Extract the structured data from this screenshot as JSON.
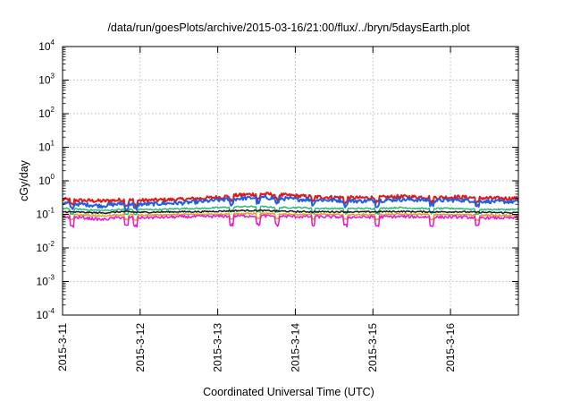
{
  "chart_data": {
    "type": "line",
    "title": "/data/run/goesPlots/archive/2015-03-16/21:00/flux/../bryn/5daysEarth.plot",
    "xlabel": "Coordinated Universal Time (UTC)",
    "ylabel": "cGy/day",
    "y_scale": "log",
    "ylim": [
      0.0001,
      10000
    ],
    "y_ticks": [
      {
        "base": "10",
        "exp": "4"
      },
      {
        "base": "10",
        "exp": "3"
      },
      {
        "base": "10",
        "exp": "2"
      },
      {
        "base": "10",
        "exp": "1"
      },
      {
        "base": "10",
        "exp": "0"
      },
      {
        "base": "10",
        "exp": "-1"
      },
      {
        "base": "10",
        "exp": "-2"
      },
      {
        "base": "10",
        "exp": "-3"
      },
      {
        "base": "10",
        "exp": "-4"
      }
    ],
    "xlim": [
      "2015-03-11",
      "2015-03-16T21:00"
    ],
    "x_ticks": [
      "2015-3-11",
      "2015-3-12",
      "2015-3-13",
      "2015-3-14",
      "2015-3-15",
      "2015-3-16"
    ],
    "grid": true,
    "series": [
      {
        "color": "#e01a1a",
        "values": [
          0.28,
          0.26,
          0.25,
          0.27,
          0.26,
          0.27,
          0.28,
          0.3,
          0.33,
          0.38,
          0.41,
          0.38,
          0.35,
          0.33,
          0.32,
          0.31,
          0.32,
          0.34,
          0.33,
          0.32,
          0.33,
          0.31,
          0.3,
          0.3
        ]
      },
      {
        "color": "#1f5fe0",
        "values": [
          0.22,
          0.2,
          0.18,
          0.21,
          0.2,
          0.21,
          0.22,
          0.24,
          0.27,
          0.3,
          0.32,
          0.3,
          0.28,
          0.27,
          0.26,
          0.25,
          0.26,
          0.28,
          0.27,
          0.26,
          0.27,
          0.25,
          0.24,
          0.24
        ]
      },
      {
        "color": "#2db87a",
        "values": [
          0.15,
          0.14,
          0.13,
          0.14,
          0.14,
          0.14,
          0.15,
          0.15,
          0.16,
          0.17,
          0.17,
          0.16,
          0.16,
          0.15,
          0.15,
          0.15,
          0.15,
          0.16,
          0.15,
          0.15,
          0.15,
          0.14,
          0.14,
          0.14
        ]
      },
      {
        "color": "#1a1a1a",
        "values": [
          0.12,
          0.115,
          0.11,
          0.12,
          0.115,
          0.118,
          0.12,
          0.12,
          0.125,
          0.13,
          0.13,
          0.125,
          0.12,
          0.12,
          0.12,
          0.118,
          0.12,
          0.122,
          0.12,
          0.118,
          0.12,
          0.115,
          0.113,
          0.112
        ]
      },
      {
        "color": "#e6a21a",
        "values": [
          0.1,
          0.095,
          0.09,
          0.098,
          0.095,
          0.097,
          0.1,
          0.1,
          0.103,
          0.106,
          0.106,
          0.103,
          0.1,
          0.1,
          0.099,
          0.098,
          0.099,
          0.101,
          0.1,
          0.098,
          0.099,
          0.095,
          0.093,
          0.092
        ]
      },
      {
        "color": "#e81ad0",
        "values": [
          0.085,
          0.08,
          0.07,
          0.083,
          0.08,
          0.082,
          0.085,
          0.086,
          0.088,
          0.09,
          0.09,
          0.088,
          0.086,
          0.085,
          0.084,
          0.083,
          0.084,
          0.086,
          0.085,
          0.083,
          0.084,
          0.08,
          0.079,
          0.078
        ]
      }
    ]
  }
}
